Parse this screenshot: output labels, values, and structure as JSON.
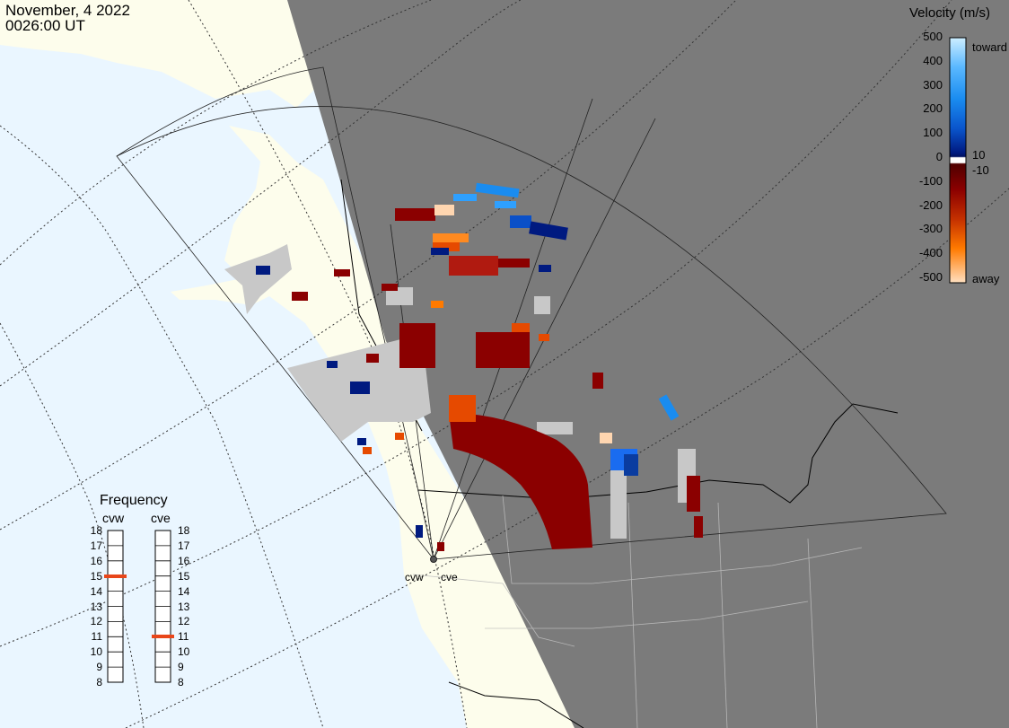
{
  "header": {
    "date": "November, 4 2022",
    "time": "0026:00 UT"
  },
  "legend": {
    "title": "Velocity (m/s)",
    "ticks": [
      "500",
      "400",
      "300",
      "200",
      "100",
      "0",
      "-100",
      "-200",
      "-300",
      "-400",
      "-500"
    ],
    "toward_label": "toward",
    "away_label": "away",
    "near_zero_pos": "10",
    "near_zero_neg": "-10",
    "colors": {
      "toward_500": "#bfe6ff",
      "toward_300": "#1a8cf0",
      "toward_100": "#0a2a9a",
      "away_100": "#8b0000",
      "away_300": "#e64a00",
      "away_500": "#ffd6b0"
    }
  },
  "frequency": {
    "title": "Frequency",
    "radars": [
      {
        "name": "cvw",
        "value_mhz": 15
      },
      {
        "name": "cve",
        "value_mhz": 11
      }
    ],
    "scale": [
      "18",
      "17",
      "16",
      "15",
      "14",
      "13",
      "12",
      "11",
      "10",
      "9",
      "8"
    ],
    "marker_color": "#e8461a"
  },
  "sites": {
    "west": "cvw",
    "east": "cve"
  },
  "map": {
    "ocean": "#eaf6ff",
    "land": "#fdfdec",
    "night": "#7b7b7b",
    "ground_scatter": "#c8c8c8"
  }
}
